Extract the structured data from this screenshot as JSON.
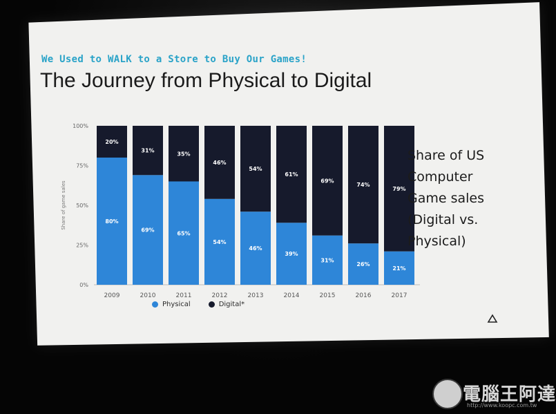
{
  "slide": {
    "subtitle": "We Used to WALK to a Store to Buy Our Games!",
    "title": "The Journey from Physical to Digital",
    "side_text": [
      "Share of US",
      "Computer",
      "Game sales",
      "(Digital vs.",
      "Physical)"
    ]
  },
  "chart_data": {
    "type": "bar",
    "stacked": true,
    "categories": [
      "2009",
      "2010",
      "2011",
      "2012",
      "2013",
      "2014",
      "2015",
      "2016",
      "2017"
    ],
    "series": [
      {
        "name": "Physical",
        "values": [
          80,
          69,
          65,
          54,
          46,
          39,
          31,
          26,
          21
        ],
        "color": "#2e86d8"
      },
      {
        "name": "Digital*",
        "values": [
          20,
          31,
          35,
          46,
          54,
          61,
          69,
          74,
          79
        ],
        "color": "#161a2c"
      }
    ],
    "ylabel": "Share of game sales",
    "yticks": [
      "0%",
      "25%",
      "50%",
      "75%",
      "100%"
    ],
    "ylim": [
      0,
      100
    ],
    "legend_position": "bottom",
    "grid": false
  },
  "watermark": {
    "text": "電腦王阿達",
    "url": "http://www.koopc.com.tw"
  },
  "colors": {
    "slide_bg": "#f1f1ef",
    "accent": "#2aa3c8",
    "physical": "#2e86d8",
    "digital": "#161a2c"
  }
}
